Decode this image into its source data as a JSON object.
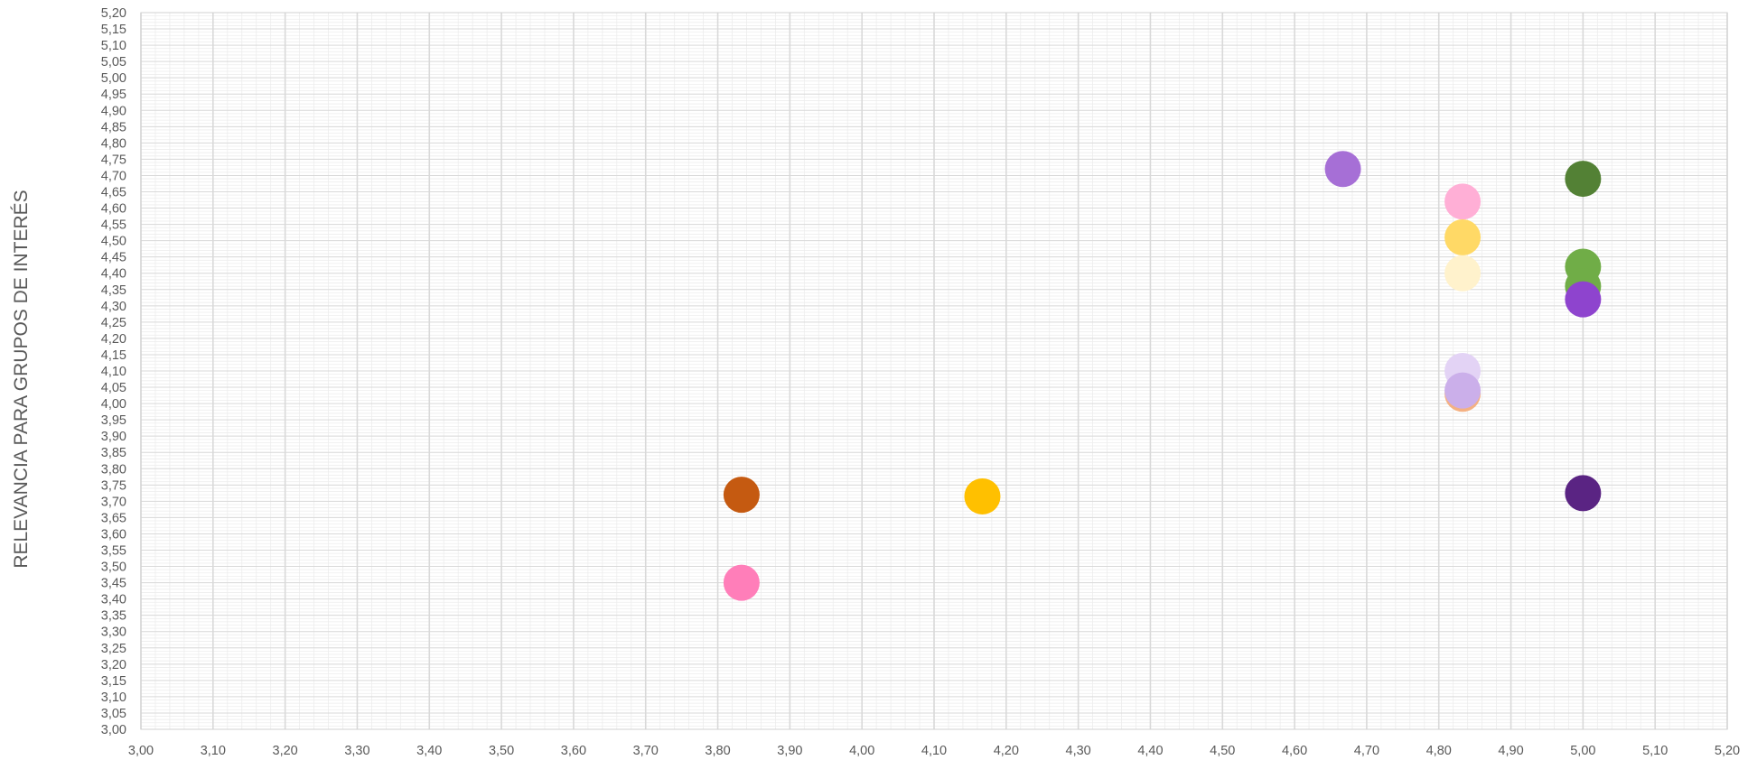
{
  "chart_data": {
    "type": "scatter",
    "title": "",
    "xlabel": "",
    "ylabel": "RELEVANCIA PARA GRUPOS DE INTERÉS",
    "xlim": [
      3.0,
      5.2
    ],
    "ylim": [
      3.0,
      5.2
    ],
    "x_major_step": 0.1,
    "y_major_step": 0.05,
    "decimal_separator": ",",
    "grid": true,
    "legend": "none",
    "points": [
      {
        "x": 4.667,
        "y": 4.72,
        "color": "#A66FD6"
      },
      {
        "x": 5.0,
        "y": 4.69,
        "color": "#538135"
      },
      {
        "x": 4.833,
        "y": 4.62,
        "color": "#FFAFD6"
      },
      {
        "x": 4.833,
        "y": 4.51,
        "color": "#FFD966"
      },
      {
        "x": 5.0,
        "y": 4.42,
        "color": "#70AD47"
      },
      {
        "x": 4.833,
        "y": 4.4,
        "color": "#FFF2CC"
      },
      {
        "x": 5.0,
        "y": 4.36,
        "color": "#70AD47"
      },
      {
        "x": 5.0,
        "y": 4.32,
        "color": "#8E44CE"
      },
      {
        "x": 4.833,
        "y": 4.1,
        "color": "#E3D3F5"
      },
      {
        "x": 4.833,
        "y": 4.03,
        "color": "#F4B183"
      },
      {
        "x": 4.833,
        "y": 4.04,
        "color": "#CBAFEA"
      },
      {
        "x": 3.833,
        "y": 3.72,
        "color": "#C55A11"
      },
      {
        "x": 4.167,
        "y": 3.715,
        "color": "#FFC000"
      },
      {
        "x": 5.0,
        "y": 3.725,
        "color": "#5A2483"
      },
      {
        "x": 3.833,
        "y": 3.45,
        "color": "#FF7EB9"
      }
    ]
  }
}
